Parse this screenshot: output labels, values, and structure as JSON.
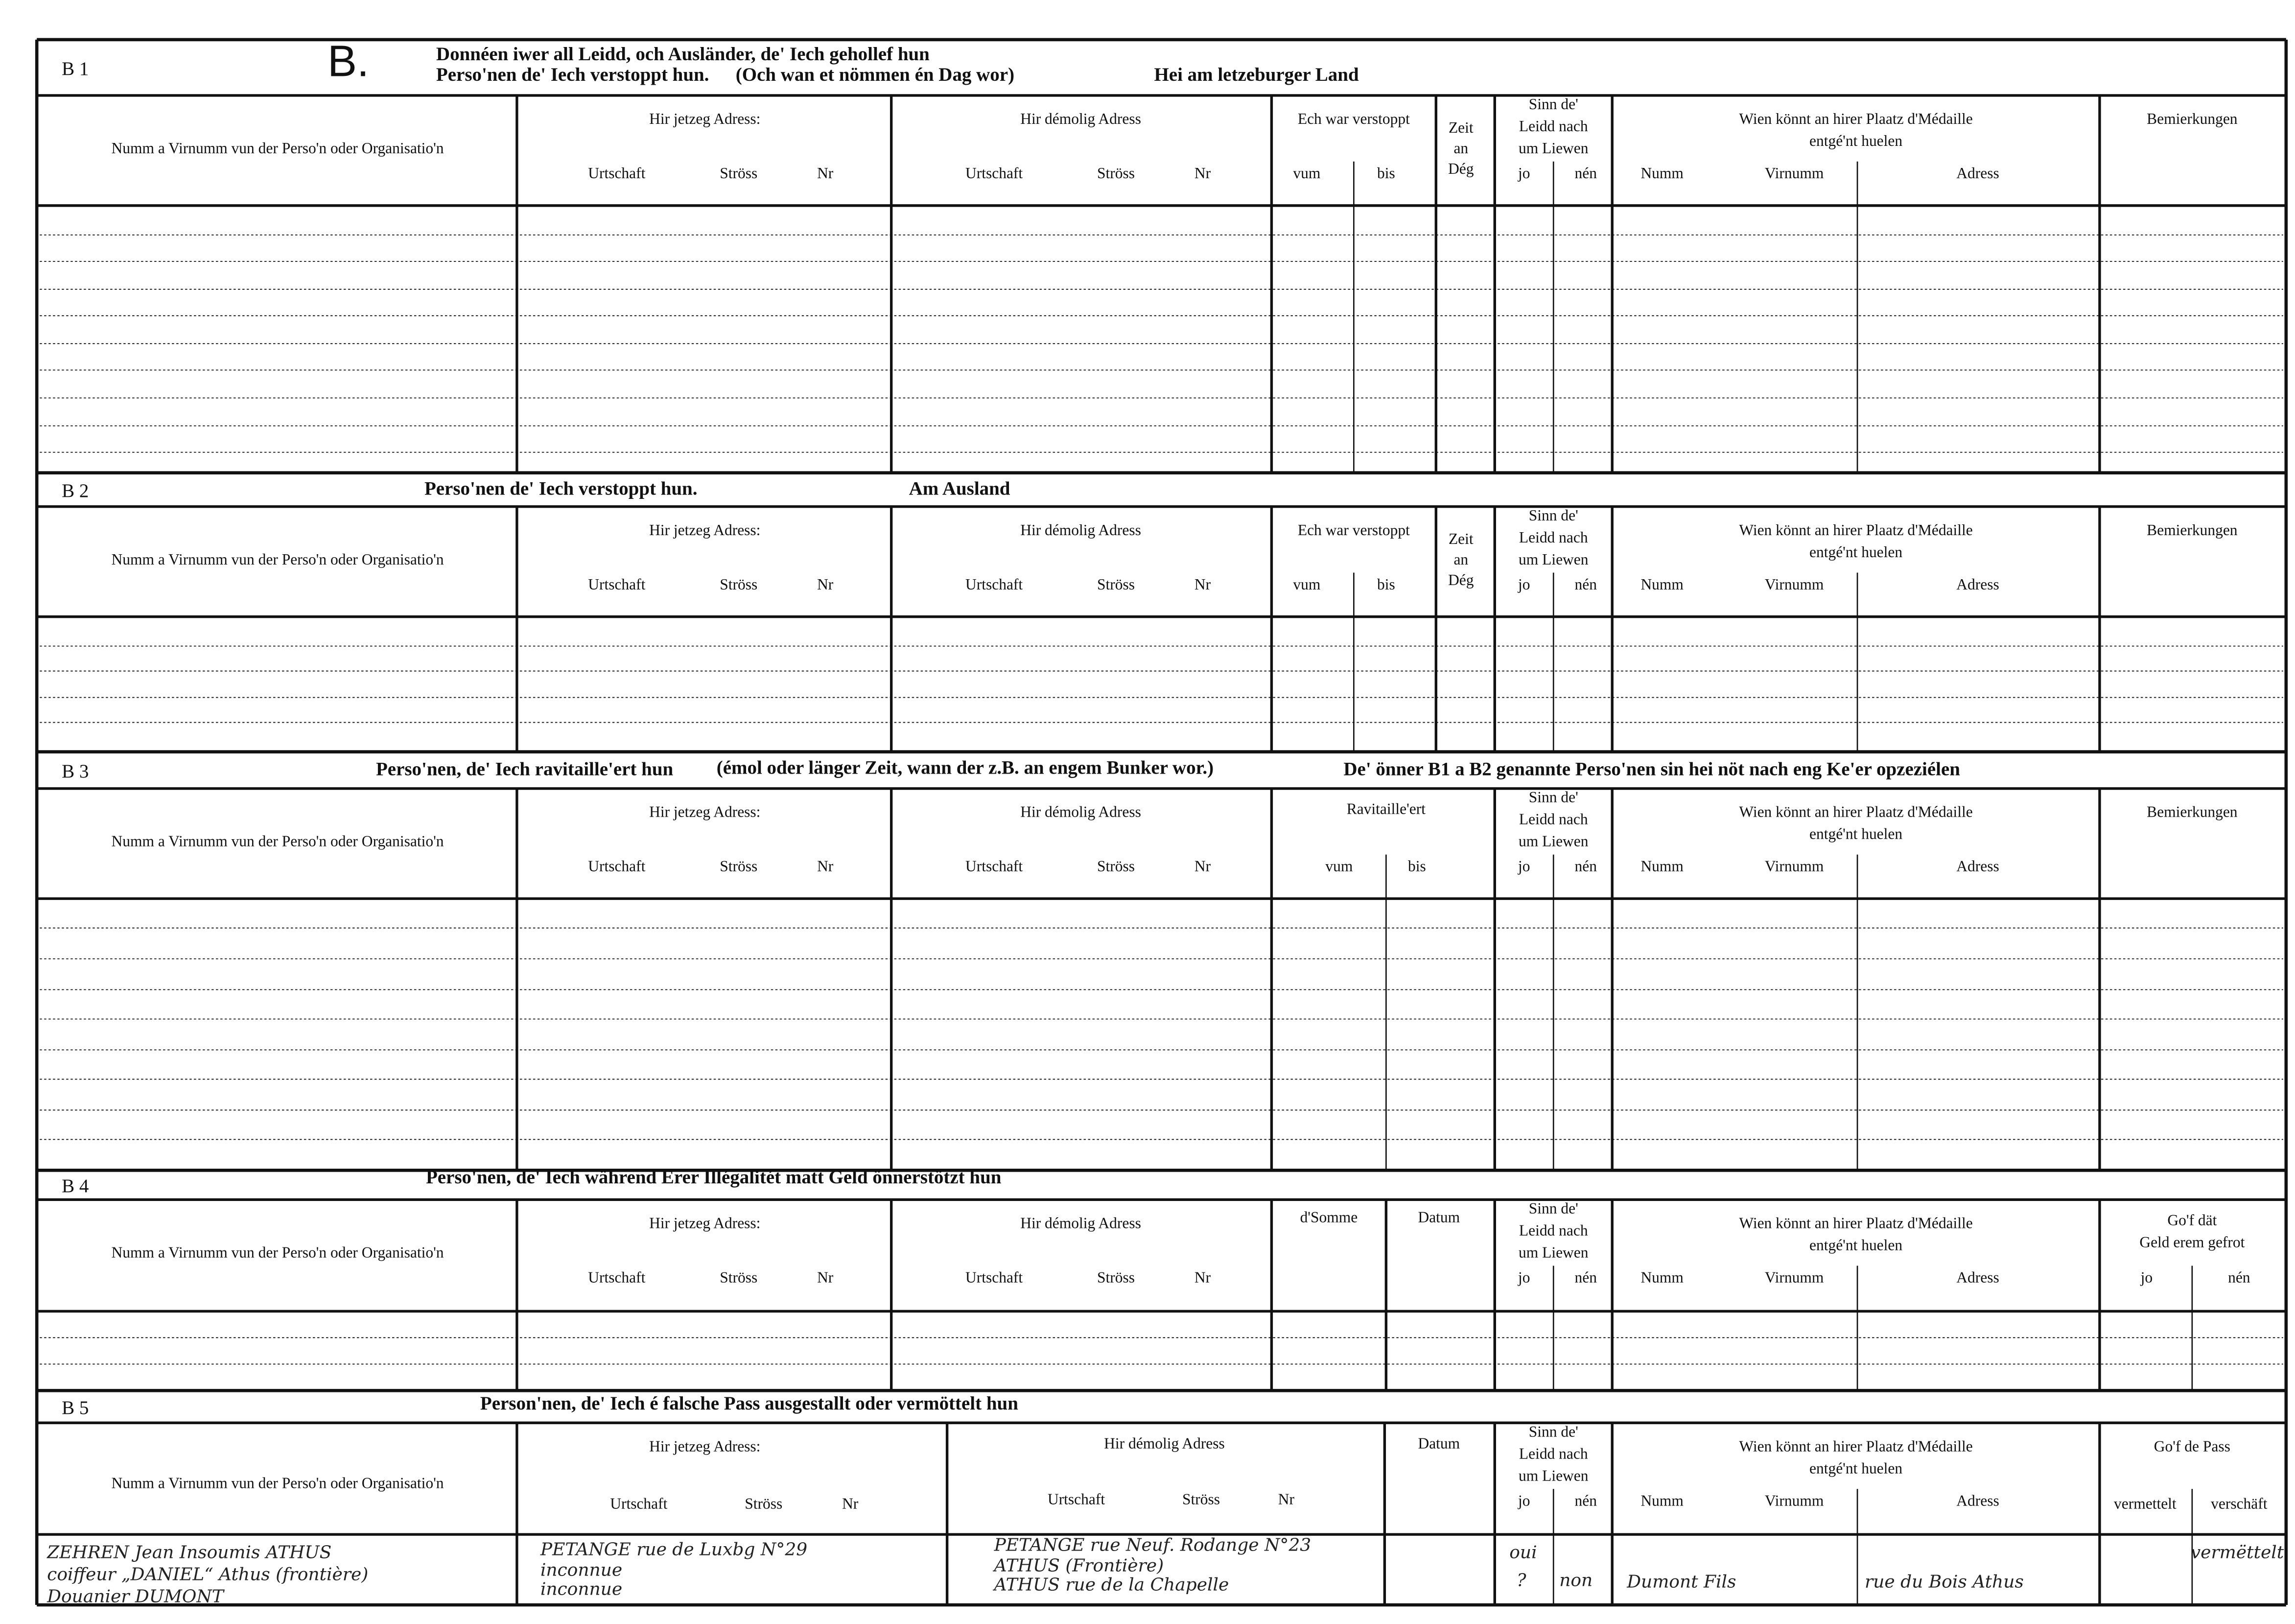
{
  "sections": [
    {
      "code": "B 1",
      "letter": "B.",
      "heading": [
        "Donnéen iwer all Leidd, och Ausländer, de' Iech gehollef hun",
        "Perso'nen de' Iech verstoppt hun.",
        "(Och wan et nömmen én Dag wor)",
        "Hei am letzeburger Land"
      ],
      "headers": [
        "Numm a Virnumm vun der Perso'n oder Organisatio'n",
        "Hir jetzeg Adress:",
        "Urtschaft",
        "Ströss",
        "Nr",
        "Hir démolig Adress",
        "Urtschaft",
        "Ströss",
        "Nr",
        "Ech war verstoppt",
        "vum",
        "bis",
        "Zeit",
        "an",
        "Dég",
        "Sinn de'",
        "Leidd nach",
        "um Liewen",
        "jo",
        "nén",
        "Wien könnt an hirer Plaatz d'Médaille",
        "entgé'nt huelen",
        "Numm",
        "Virnumm",
        "Adress",
        "Bemierkungen"
      ]
    },
    {
      "code": "B 2",
      "heading": [
        "Perso'nen de' Iech verstoppt hun.",
        "Am Ausland"
      ],
      "headers": [
        "Numm a Virnumm vun der Perso'n oder Organisatio'n",
        "Hir jetzeg Adress:",
        "Urtschaft",
        "Ströss",
        "Nr",
        "Hir démolig Adress",
        "Urtschaft",
        "Ströss",
        "Nr",
        "Ech war verstoppt",
        "vum",
        "bis",
        "Zeit",
        "an",
        "Dég",
        "Sinn de'",
        "Leidd nach",
        "um Liewen",
        "jo",
        "nén",
        "Wien könnt an hirer Plaatz d'Médaille",
        "entgé'nt huelen",
        "Numm",
        "Virnumm",
        "Adress",
        "Bemierkungen"
      ]
    },
    {
      "code": "B 3",
      "heading": [
        "Perso'nen, de' Iech ravitaille'ert hun",
        "(émol oder länger Zeit, wann der z.B. an engem Bunker wor.)",
        "De' önner B1 a B2 genannte Perso'nen sin hei nöt nach eng Ke'er opzeziélen"
      ],
      "headers": [
        "Numm a Virnumm vun der Perso'n oder Organisatio'n",
        "Hir jetzeg Adress:",
        "Urtschaft",
        "Ströss",
        "Nr",
        "Hir démolig Adress",
        "Urtschaft",
        "Ströss",
        "Nr",
        "Ravitaille'ert",
        "vum",
        "bis",
        "Sinn de'",
        "Leidd nach",
        "um Liewen",
        "jo",
        "nén",
        "Wien könnt an hirer Plaatz d'Médaille",
        "entgé'nt huelen",
        "Numm",
        "Virnumm",
        "Adress",
        "Bemierkungen"
      ]
    },
    {
      "code": "B 4",
      "heading": [
        "Perso'nen, de' Iech während Erer Illégalitét matt Geld önnerstötzt hun"
      ],
      "headers": [
        "Numm a Virnumm vun der Perso'n oder Organisatio'n",
        "Hir jetzeg Adress:",
        "Urtschaft",
        "Ströss",
        "Nr",
        "Hir démolig Adress",
        "Urtschaft",
        "Ströss",
        "Nr",
        "d'Somme",
        "Datum",
        "Sinn de'",
        "Leidd nach",
        "um Liewen",
        "jo",
        "nén",
        "Wien könnt an hirer Plaatz d'Médaille",
        "entgé'nt huelen",
        "Numm",
        "Virnumm",
        "Adress",
        "Go'f dät",
        "Geld erem gefrot",
        "jo",
        "nén"
      ]
    },
    {
      "code": "B 5",
      "heading": [
        "Person'nen, de' Iech é falsche Pass ausgestallt oder vermöttelt hun"
      ],
      "headers": [
        "Numm a Virnumm vun der Perso'n oder Organisatio'n",
        "Hir jetzeg Adress:",
        "Urtschaft",
        "Ströss",
        "Nr",
        "Hir démolig Adress",
        "Urtschaft",
        "Ströss",
        "Nr",
        "Datum",
        "Sinn de'",
        "Leidd nach",
        "um Liewen",
        "jo",
        "nén",
        "Wien könnt an hirer Plaatz d'Médaille",
        "entgé'nt huelen",
        "Numm",
        "Virnumm",
        "Adress",
        "Go'f de Pass",
        "vermettelt",
        "verschäft"
      ],
      "entries": [
        "ZEHREN Jean   Insoumis ATHUS",
        "coiffeur „DANIEL“ Athus (frontière)",
        "Douanier  DUMONT",
        "PETANGE rue de Luxbg N°29",
        "inconnue",
        "inconnue",
        "PETANGE rue Neuf. Rodange N°23",
        "ATHUS (Frontière)",
        "ATHUS rue de la Chapelle",
        "oui",
        "?",
        "non",
        "Dumont Fils",
        "rue du Bois Athus",
        "vermëttelt"
      ]
    }
  ]
}
